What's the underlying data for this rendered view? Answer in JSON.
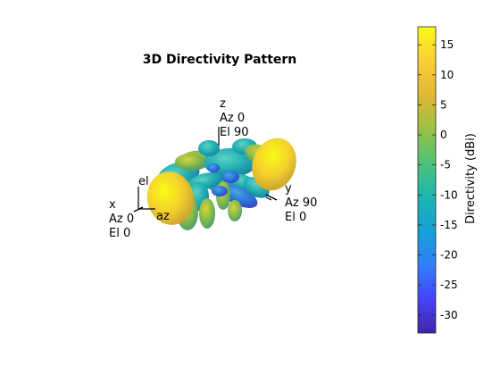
{
  "chart_data": {
    "type": "3d-radiation-pattern",
    "title": "3D Directivity Pattern",
    "axes_labels": {
      "x": [
        "x",
        "Az 0",
        "El 0"
      ],
      "y": [
        "y",
        "Az 90",
        "El 0"
      ],
      "z": [
        "z",
        "Az 0",
        "El 90"
      ],
      "az": "az",
      "el": "el"
    },
    "colorbar": {
      "label": "Directivity (dBi)",
      "range": [
        -33,
        18
      ],
      "ticks": [
        15,
        10,
        5,
        0,
        -5,
        -10,
        -15,
        -20,
        -25,
        -30
      ],
      "colormap": [
        "#3e26a8",
        "#4743f8",
        "#2f80fa",
        "#16a0d6",
        "#1cb6b1",
        "#4dc27a",
        "#99c145",
        "#e1b832",
        "#fbcd36",
        "#f9fb15"
      ]
    },
    "lobes": [
      {
        "az": 0,
        "el": 0,
        "value": 16
      },
      {
        "az": 90,
        "el": 0,
        "value": 14
      },
      {
        "az": 0,
        "el": 90,
        "value": -8
      }
    ]
  }
}
